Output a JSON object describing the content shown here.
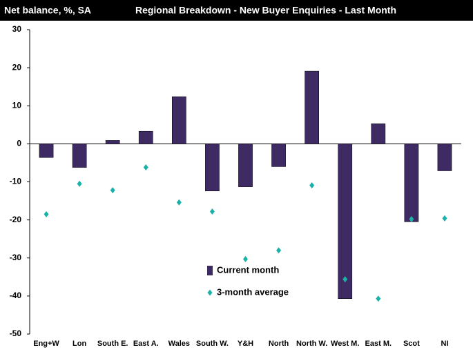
{
  "chart_data": {
    "type": "bar",
    "title": "Regional Breakdown - New Buyer Enquiries - Last Month",
    "ylabel": "Net balance, %, SA",
    "categories": [
      "Eng+W",
      "Lon",
      "South E.",
      "East A.",
      "Wales",
      "South W.",
      "Y&H",
      "North",
      "North W.",
      "West M.",
      "East M.",
      "Scot",
      "NI"
    ],
    "series": [
      {
        "name": "Current month",
        "type": "bar",
        "color": "#3f2b63",
        "values": [
          -3.6,
          -6.2,
          0.9,
          3.3,
          12.4,
          -12.4,
          -11.3,
          -6.0,
          19.1,
          -40.7,
          5.3,
          -20.5,
          -7.1
        ]
      },
      {
        "name": "3-month average",
        "type": "scatter",
        "color": "#1ab2a8",
        "values": [
          -18.5,
          -10.5,
          -12.2,
          -6.2,
          -15.4,
          -17.8,
          -30.3,
          -28.0,
          -10.9,
          -35.6,
          -40.7,
          -19.8,
          -19.6
        ]
      }
    ],
    "ylim": [
      -50,
      30
    ],
    "yticks": [
      -50,
      -40,
      -30,
      -20,
      -10,
      0,
      10,
      20,
      30
    ]
  }
}
